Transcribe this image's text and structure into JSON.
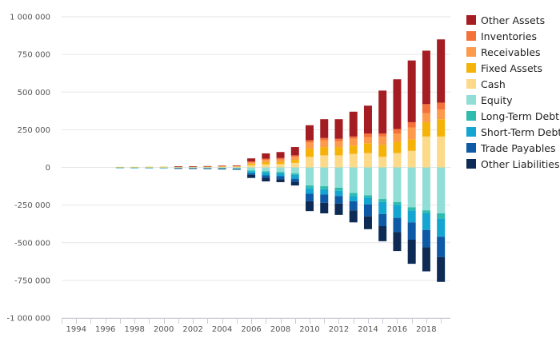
{
  "chart_data": {
    "type": "bar",
    "stacked": true,
    "title": "",
    "xlabel": "",
    "ylabel": "",
    "ylim": [
      -1000000,
      1000000
    ],
    "y_ticks": [
      1000000,
      750000,
      500000,
      250000,
      0,
      -250000,
      -500000,
      -750000,
      -1000000
    ],
    "y_tick_labels": [
      "1 000 000",
      "750 000",
      "500 000",
      "250 000",
      "0",
      "-250 000",
      "-500 000",
      "-750 000",
      "-1 000 000"
    ],
    "x_tick_labels": [
      "1994",
      "1996",
      "1998",
      "2000",
      "2002",
      "2004",
      "2006",
      "2008",
      "2010",
      "2012",
      "2014",
      "2016",
      "2018"
    ],
    "grid": true,
    "legend_position": "right",
    "categories": [
      "1997",
      "1998",
      "1999",
      "2000",
      "2001",
      "2002",
      "2003",
      "2004",
      "2005",
      "2006",
      "2007",
      "2008",
      "2009",
      "2010",
      "2011",
      "2012",
      "2013",
      "2014",
      "2015",
      "2016",
      "2017",
      "2018",
      "2019"
    ],
    "positive_series": [
      {
        "name": "Cash",
        "color": "#fdd98a",
        "values": [
          2000,
          2500,
          3000,
          3500,
          4000,
          4500,
          5000,
          6000,
          7000,
          15000,
          20000,
          22000,
          30000,
          70000,
          80000,
          80000,
          90000,
          95000,
          70000,
          95000,
          110000,
          205000,
          205000
        ]
      },
      {
        "name": "Fixed Assets",
        "color": "#f5b30a",
        "values": [
          1000,
          1000,
          1000,
          1000,
          1500,
          1500,
          2000,
          2000,
          2000,
          10000,
          15000,
          15000,
          20000,
          55000,
          55000,
          55000,
          55000,
          65000,
          80000,
          75000,
          75000,
          95000,
          115000
        ]
      },
      {
        "name": "Receivables",
        "color": "#fd9a4c",
        "values": [
          0,
          0,
          0,
          0,
          500,
          500,
          500,
          1000,
          1000,
          8000,
          15000,
          15000,
          20000,
          40000,
          45000,
          40000,
          45000,
          40000,
          55000,
          55000,
          80000,
          60000,
          65000
        ]
      },
      {
        "name": "Inventories",
        "color": "#f5713a",
        "values": [
          0,
          0,
          0,
          0,
          500,
          500,
          500,
          1000,
          1000,
          7000,
          8000,
          10000,
          10000,
          15000,
          15000,
          15000,
          15000,
          25000,
          20000,
          30000,
          35000,
          60000,
          45000
        ]
      },
      {
        "name": "Other Assets",
        "color": "#a31d22",
        "values": [
          0,
          0,
          0,
          0,
          1000,
          1000,
          1000,
          1500,
          2000,
          20000,
          35000,
          40000,
          55000,
          100000,
          125000,
          130000,
          165000,
          185000,
          285000,
          330000,
          410000,
          355000,
          420000
        ]
      }
    ],
    "negative_series": [
      {
        "name": "Equity",
        "color": "#90ded6",
        "values": [
          2000,
          2500,
          3000,
          3500,
          4000,
          4500,
          5000,
          6000,
          7000,
          20000,
          25000,
          30000,
          40000,
          120000,
          125000,
          135000,
          170000,
          185000,
          210000,
          230000,
          265000,
          285000,
          305000
        ]
      },
      {
        "name": "Long-Term Debt",
        "color": "#2fbcae",
        "values": [
          0,
          0,
          0,
          0,
          500,
          500,
          500,
          1000,
          1000,
          5000,
          8000,
          8000,
          10000,
          20000,
          20000,
          20000,
          20000,
          15000,
          20000,
          20000,
          20000,
          20000,
          35000
        ]
      },
      {
        "name": "Short-Term Debt",
        "color": "#14a6d0",
        "values": [
          500,
          500,
          500,
          500,
          1000,
          1000,
          1000,
          1500,
          2000,
          15000,
          20000,
          20000,
          25000,
          35000,
          35000,
          35000,
          35000,
          45000,
          80000,
          85000,
          80000,
          110000,
          120000
        ]
      },
      {
        "name": "Trade Payables",
        "color": "#0e5aa7",
        "values": [
          0,
          0,
          0,
          0,
          500,
          500,
          1000,
          1500,
          2000,
          10000,
          15000,
          20000,
          20000,
          50000,
          55000,
          50000,
          60000,
          80000,
          80000,
          95000,
          115000,
          115000,
          135000
        ]
      },
      {
        "name": "Other Liabilities",
        "color": "#0d2b55",
        "values": [
          0,
          0,
          0,
          0,
          500,
          1000,
          1000,
          2000,
          2500,
          20000,
          25000,
          20000,
          25000,
          65000,
          70000,
          75000,
          80000,
          85000,
          100000,
          125000,
          160000,
          160000,
          165000
        ]
      }
    ],
    "legend": [
      {
        "name": "Other Assets",
        "color": "#a31d22"
      },
      {
        "name": "Inventories",
        "color": "#f5713a"
      },
      {
        "name": "Receivables",
        "color": "#fd9a4c"
      },
      {
        "name": "Fixed Assets",
        "color": "#f5b30a"
      },
      {
        "name": "Cash",
        "color": "#fdd98a"
      },
      {
        "name": "Equity",
        "color": "#90ded6"
      },
      {
        "name": "Long-Term Debt",
        "color": "#2fbcae"
      },
      {
        "name": "Short-Term Debt",
        "color": "#14a6d0"
      },
      {
        "name": "Trade Payables",
        "color": "#0e5aa7"
      },
      {
        "name": "Other Liabilities",
        "color": "#0d2b55"
      }
    ]
  }
}
